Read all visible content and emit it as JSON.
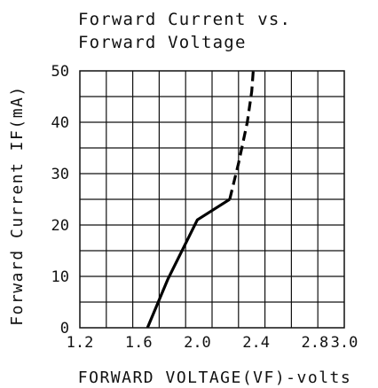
{
  "chart_data": {
    "type": "line",
    "title": "Forward Current vs.\nForward Voltage",
    "xlabel": "FORWARD VOLTAGE(VF)-volts",
    "ylabel": "Forward Current IF(mA)",
    "xlim": [
      1.2,
      3.0
    ],
    "ylim": [
      0,
      50
    ],
    "x_ticks": [
      1.2,
      1.6,
      2.0,
      2.4,
      2.8,
      3.0
    ],
    "x_tick_labels": [
      "1.2",
      "1.6",
      "2.0",
      "2.4",
      "2.8",
      "3.0"
    ],
    "y_ticks": [
      0,
      10,
      20,
      30,
      40,
      50
    ],
    "y_tick_labels": [
      "0",
      "10",
      "20",
      "30",
      "40",
      "50"
    ],
    "grid": true,
    "series": [
      {
        "style": "solid",
        "color": "#000000",
        "x": [
          1.66,
          1.8,
          2.0,
          2.22
        ],
        "y": [
          0,
          9.5,
          21,
          25
        ]
      },
      {
        "style": "dashed",
        "color": "#000000",
        "x": [
          2.22,
          2.28,
          2.34,
          2.37,
          2.38
        ],
        "y": [
          25,
          32,
          40,
          46,
          50
        ]
      }
    ]
  }
}
